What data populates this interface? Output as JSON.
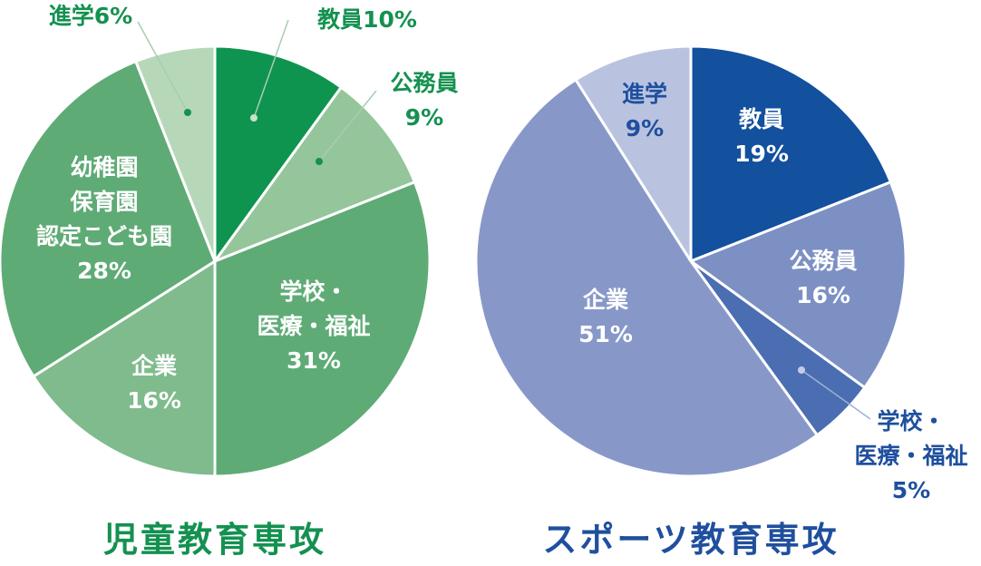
{
  "chart_data": [
    {
      "type": "pie",
      "title": "児童教育専攻",
      "title_color": "#149150",
      "slices": [
        {
          "name": "教員",
          "value": 10,
          "color": "#0f9450",
          "label_lines": [
            "教員10%"
          ],
          "label_color": "#149150"
        },
        {
          "name": "公務員",
          "value": 9,
          "color": "#95c59a",
          "label_lines": [
            "公務員",
            "9%"
          ],
          "label_color": "#149150"
        },
        {
          "name": "学校・医療・福祉",
          "value": 31,
          "color": "#5fab76",
          "label_lines": [
            "学校・",
            "医療・福祉",
            "31%"
          ],
          "label_color": "#ffffff"
        },
        {
          "name": "企業",
          "value": 16,
          "color": "#7fbb8c",
          "label_lines": [
            "企業",
            "16%"
          ],
          "label_color": "#ffffff"
        },
        {
          "name": "幼稚園保育園認定こども園",
          "value": 28,
          "color": "#5fab76",
          "label_lines": [
            "幼稚園",
            "保育園",
            "認定こども園",
            "28%"
          ],
          "label_color": "#ffffff"
        },
        {
          "name": "進学",
          "value": 6,
          "color": "#b6d8b9",
          "label_lines": [
            "進学6%"
          ],
          "label_color": "#149150"
        }
      ]
    },
    {
      "type": "pie",
      "title": "スポーツ教育専攻",
      "title_color": "#1f4f9e",
      "slices": [
        {
          "name": "教員",
          "value": 19,
          "color": "#13509e",
          "label_lines": [
            "教員",
            "19%"
          ],
          "label_color": "#ffffff"
        },
        {
          "name": "公務員",
          "value": 16,
          "color": "#7d90c4",
          "label_lines": [
            "公務員",
            "16%"
          ],
          "label_color": "#ffffff"
        },
        {
          "name": "学校・医療・福祉",
          "value": 5,
          "color": "#4b6db2",
          "label_lines": [
            "学校・",
            "医療・福祉",
            "5%"
          ],
          "label_color": "#1f4f9e"
        },
        {
          "name": "企業",
          "value": 51,
          "color": "#8798c8",
          "label_lines": [
            "企業",
            "51%"
          ],
          "label_color": "#ffffff"
        },
        {
          "name": "進学",
          "value": 9,
          "color": "#b9c3e0",
          "label_lines": [
            "進学",
            "9%"
          ],
          "label_color": "#1f4f9e"
        }
      ]
    }
  ]
}
